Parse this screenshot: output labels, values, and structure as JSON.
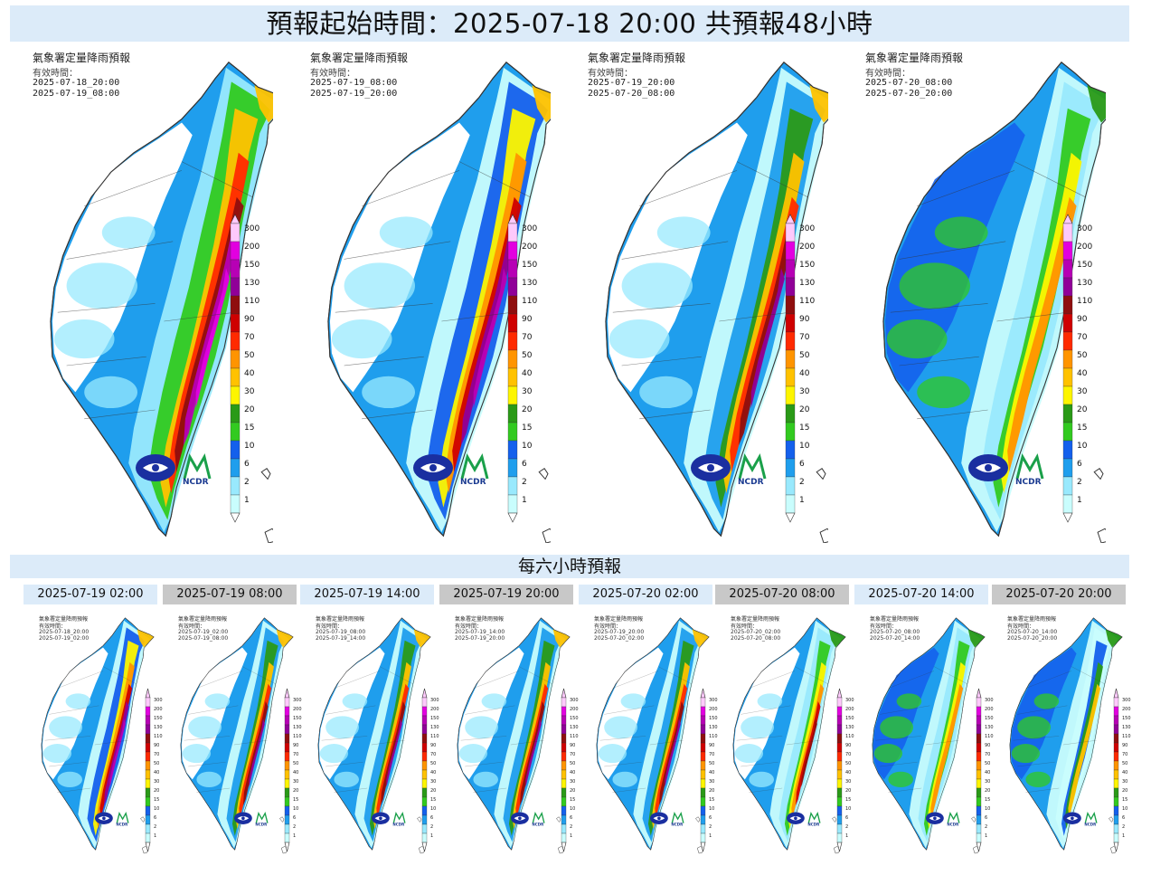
{
  "main_title": "預報起始時間：2025-07-18 20:00  共預報48小時",
  "six_hour_title": "每六小時預報",
  "agency_title": "氣象署定量降雨預報",
  "valid_label": "有效時間：",
  "logo_ncdr": "NCDR",
  "legend_levels": [
    "300",
    "200",
    "150",
    "130",
    "110",
    "90",
    "70",
    "50",
    "40",
    "30",
    "20",
    "15",
    "10",
    "6",
    "2",
    "1"
  ],
  "colors": {
    "c300": "#fdc9fb",
    "c200": "#e200e0",
    "c150": "#b700b5",
    "c130": "#900098",
    "c110": "#8f0e0e",
    "c90": "#cf0000",
    "c70": "#ff2a00",
    "c50": "#ff9400",
    "c40": "#ffc200",
    "c30": "#fdf500",
    "c20": "#2a9a17",
    "c15": "#32ca20",
    "c10": "#1460ec",
    "c6": "#1f9eed",
    "c2": "#99e9fd",
    "c1": "#c9fdfd"
  },
  "large_maps": [
    {
      "from": "2025-07-18_20:00",
      "to": "2025-07-19_08:00",
      "intensity": 0.95
    },
    {
      "from": "2025-07-19_08:00",
      "to": "2025-07-19_20:00",
      "intensity": 0.9
    },
    {
      "from": "2025-07-19_20:00",
      "to": "2025-07-20_08:00",
      "intensity": 0.7
    },
    {
      "from": "2025-07-20_08:00",
      "to": "2025-07-20_20:00",
      "intensity": 0.45
    }
  ],
  "small_maps": [
    {
      "label": "2025-07-19 02:00",
      "from": "2025-07-18_20:00",
      "to": "2025-07-19_02:00",
      "intensity": 0.85,
      "highlight": true
    },
    {
      "label": "2025-07-19 08:00",
      "from": "2025-07-19_02:00",
      "to": "2025-07-19_08:00",
      "intensity": 0.75,
      "highlight": false
    },
    {
      "label": "2025-07-19 14:00",
      "from": "2025-07-19_08:00",
      "to": "2025-07-19_14:00",
      "intensity": 0.75,
      "highlight": true
    },
    {
      "label": "2025-07-19 20:00",
      "from": "2025-07-19_14:00",
      "to": "2025-07-19_20:00",
      "intensity": 0.72,
      "highlight": false
    },
    {
      "label": "2025-07-20 02:00",
      "from": "2025-07-19_20:00",
      "to": "2025-07-20_02:00",
      "intensity": 0.62,
      "highlight": true
    },
    {
      "label": "2025-07-20 08:00",
      "from": "2025-07-20_02:00",
      "to": "2025-07-20_08:00",
      "intensity": 0.5,
      "highlight": false
    },
    {
      "label": "2025-07-20 14:00",
      "from": "2025-07-20_08:00",
      "to": "2025-07-20_14:00",
      "intensity": 0.45,
      "highlight": true
    },
    {
      "label": "2025-07-20 20:00",
      "from": "2025-07-20_14:00",
      "to": "2025-07-20_20:00",
      "intensity": 0.3,
      "highlight": false
    }
  ]
}
